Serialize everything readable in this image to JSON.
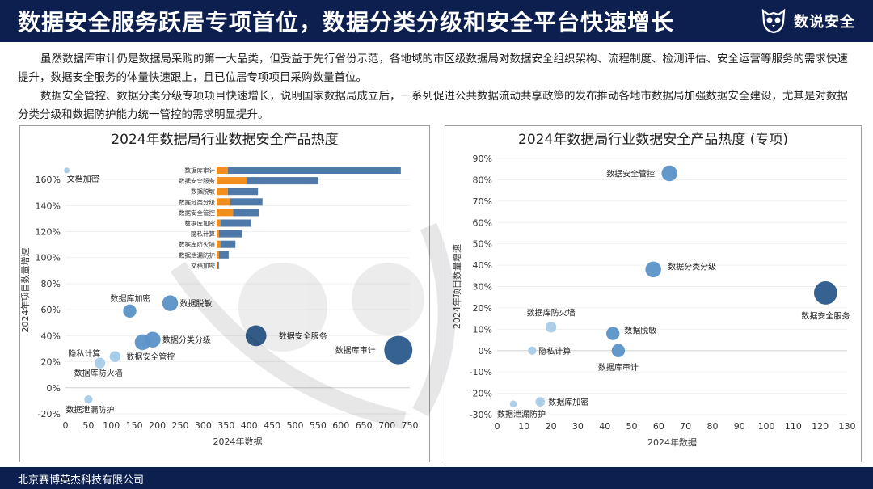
{
  "header": {
    "title": "数据安全服务跃居专项首位，数据分类分级和安全平台快速增长",
    "brand": "数说安全",
    "brand_icon": "owl-logo-icon"
  },
  "paragraphs": [
    "虽然数据库审计仍是数据局采购的第一大品类，但受益于先行省份示范，各地域的市区级数据局对数据安全组织架构、流程制度、检测评估、安全运营等服务的需求快速提升，数据安全服务的体量快速跟上，且已位居专项项目采购数量首位。",
    "数据安全管控、数据分类分级专项项目快速增长，说明国家数据局成立后，一系列促进公共数据流动共享政策的发布推动各地市数据局加强数据安全建设，尤其是对数据分类分级和数据防护能力统一管控的需求明显提升。"
  ],
  "footer": {
    "company": "北京赛博英杰科技有限公司"
  },
  "colors": {
    "header_bg": "#0d1f4f",
    "dark_blue": "#2b5a8c",
    "mid_blue": "#5b93c7",
    "light_blue": "#a6cbe8",
    "orange": "#f28f1c",
    "bar_blue": "#4f79a9"
  },
  "chart_data": [
    {
      "type": "scatter",
      "title": "2024年数据局行业数据安全产品热度",
      "xlabel": "2024年数据",
      "ylabel": "2024年项目数量增速",
      "xlim": [
        0,
        750
      ],
      "ylim": [
        -20,
        170
      ],
      "x_ticks": [
        0,
        50,
        100,
        150,
        200,
        250,
        300,
        350,
        400,
        450,
        500,
        550,
        600,
        650,
        700,
        750
      ],
      "y_ticks": [
        -20,
        0,
        20,
        40,
        60,
        80,
        100,
        120,
        140,
        160
      ],
      "y_tick_suffix": "%",
      "points": [
        {
          "label": "文档加密",
          "x": 3,
          "y": 167,
          "size": 1
        },
        {
          "label": "数据库加密",
          "x": 140,
          "y": 59,
          "size": 4
        },
        {
          "label": "数据脱敏",
          "x": 228,
          "y": 65,
          "size": 5
        },
        {
          "label": "数据分类分级",
          "x": 190,
          "y": 37,
          "size": 5
        },
        {
          "label": "数据分类分级-2",
          "x": 168,
          "y": 35,
          "size": 5
        },
        {
          "label": "数据安全服务",
          "x": 415,
          "y": 40,
          "size": 7
        },
        {
          "label": "数据库审计",
          "x": 725,
          "y": 29,
          "size": 10
        },
        {
          "label": "隐私计算",
          "x": 108,
          "y": 24,
          "size": 3
        },
        {
          "label": "数据安全管控",
          "x": 108,
          "y": 24,
          "size": 3
        },
        {
          "label": "数据库防火墙",
          "x": 75,
          "y": 19,
          "size": 3
        },
        {
          "label": "数据泄漏防护",
          "x": 50,
          "y": -9,
          "size": 2
        }
      ],
      "inset": {
        "type": "bar",
        "orientation": "horizontal",
        "categories": [
          "数据库审计",
          "数据安全服务",
          "数据脱敏",
          "数据分类分级",
          "数据安全管控",
          "数据库加密",
          "隐私计算",
          "数据库防火墙",
          "数据泄漏防护",
          "文档加密"
        ],
        "series": [
          {
            "values": [
              15,
              40,
              15,
              18,
              22,
              5,
              3,
              5,
              3,
              1
            ]
          },
          {
            "values": [
              230,
              95,
              40,
              43,
              34,
              41,
              31,
              20,
              13,
              2
            ]
          }
        ]
      }
    },
    {
      "type": "scatter",
      "title": "2024年数据局行业数据安全产品热度 (专项)",
      "xlabel": "2024年数据",
      "ylabel": "2024年项目数量增速",
      "xlim": [
        0,
        130
      ],
      "ylim": [
        -30,
        90
      ],
      "x_ticks": [
        0,
        10,
        20,
        30,
        40,
        50,
        60,
        70,
        80,
        90,
        100,
        110,
        120,
        130
      ],
      "y_ticks": [
        -30,
        -20,
        -10,
        0,
        10,
        20,
        30,
        40,
        50,
        60,
        70,
        80,
        90
      ],
      "y_tick_suffix": "%",
      "points": [
        {
          "label": "数据安全管控",
          "x": 64,
          "y": 83,
          "size": 5
        },
        {
          "label": "数据分类分级",
          "x": 58,
          "y": 38,
          "size": 5
        },
        {
          "label": "数据安全服务",
          "x": 122,
          "y": 27,
          "size": 8
        },
        {
          "label": "数据库防火墙",
          "x": 20,
          "y": 11,
          "size": 3
        },
        {
          "label": "数据脱敏",
          "x": 43,
          "y": 8,
          "size": 4
        },
        {
          "label": "隐私计算",
          "x": 13,
          "y": 0,
          "size": 2
        },
        {
          "label": "数据库审计",
          "x": 45,
          "y": 0,
          "size": 4
        },
        {
          "label": "数据库加密",
          "x": 16,
          "y": -24,
          "size": 2.5
        },
        {
          "label": "数据泄漏防护",
          "x": 6,
          "y": -25,
          "size": 1.5
        }
      ]
    }
  ]
}
